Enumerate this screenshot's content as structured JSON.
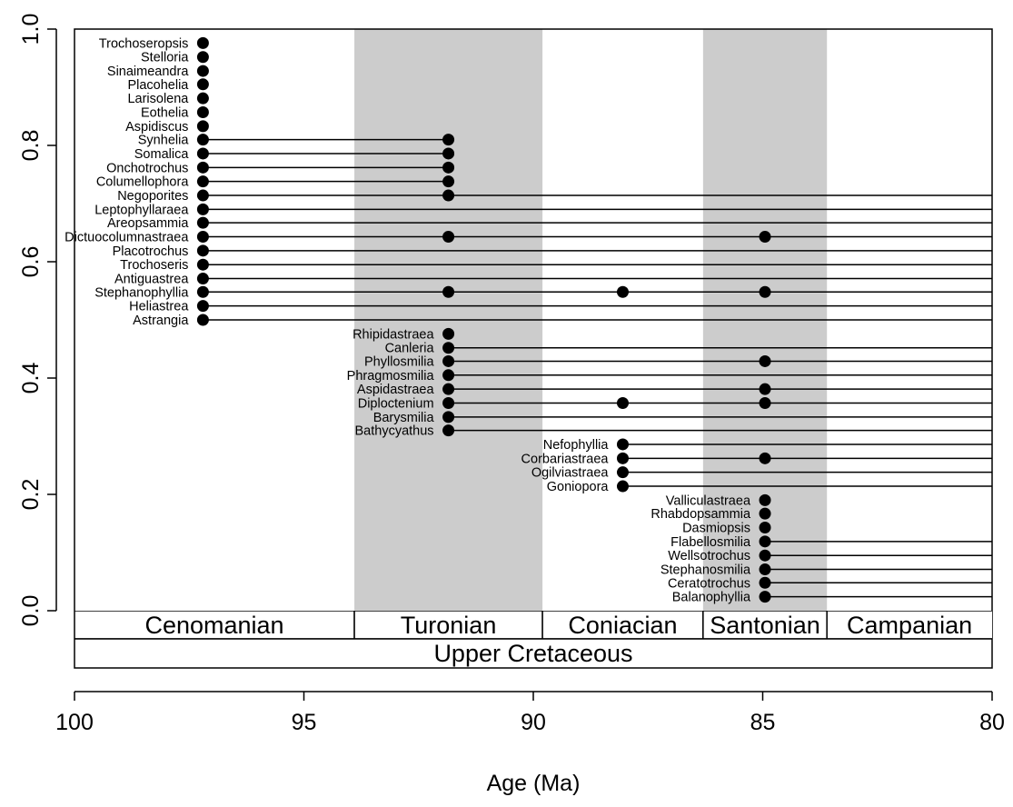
{
  "chart_data": {
    "type": "scatter",
    "xlabel": "Age (Ma)",
    "xlim": [
      100,
      80
    ],
    "ylim": [
      0,
      1
    ],
    "x_ticks": [
      100,
      95,
      90,
      85,
      80
    ],
    "x_tick_labels": [
      "100",
      "95",
      "90",
      "85",
      "80"
    ],
    "y_ticks": [
      0.0,
      0.2,
      0.4,
      0.6,
      0.8,
      1.0
    ],
    "y_tick_labels": [
      "0.0",
      "0.2",
      "0.4",
      "0.6",
      "0.8",
      "1.0"
    ],
    "stages": [
      {
        "name": "Cenomanian",
        "start": 100.5,
        "end": 93.9,
        "shaded": false
      },
      {
        "name": "Turonian",
        "start": 93.9,
        "end": 89.8,
        "shaded": true
      },
      {
        "name": "Coniacian",
        "start": 89.8,
        "end": 86.3,
        "shaded": false
      },
      {
        "name": "Santonian",
        "start": 86.3,
        "end": 83.6,
        "shaded": true
      },
      {
        "name": "Campanian",
        "start": 83.6,
        "end": 72.1,
        "shaded": false
      }
    ],
    "period": {
      "name": "Upper Cretaceous"
    },
    "shading_color": "#cccccc",
    "taxa": [
      {
        "name": "Trochoseropsis",
        "y": 0.976,
        "occurrences": [
          97.2
        ],
        "range_end": 97.2
      },
      {
        "name": "Stelloria",
        "y": 0.952,
        "occurrences": [
          97.2
        ],
        "range_end": 97.2
      },
      {
        "name": "Sinaimeandra",
        "y": 0.928,
        "occurrences": [
          97.2
        ],
        "range_end": 97.2
      },
      {
        "name": "Placohelia",
        "y": 0.905,
        "occurrences": [
          97.2
        ],
        "range_end": 97.2
      },
      {
        "name": "Larisolena",
        "y": 0.881,
        "occurrences": [
          97.2
        ],
        "range_end": 97.2
      },
      {
        "name": "Eothelia",
        "y": 0.857,
        "occurrences": [
          97.2
        ],
        "range_end": 97.2
      },
      {
        "name": "Aspidiscus",
        "y": 0.833,
        "occurrences": [
          97.2
        ],
        "range_end": 97.2
      },
      {
        "name": "Synhelia",
        "y": 0.81,
        "occurrences": [
          97.2,
          91.85
        ],
        "range_end": 91.85
      },
      {
        "name": "Somalica",
        "y": 0.786,
        "occurrences": [
          97.2,
          91.85
        ],
        "range_end": 91.85
      },
      {
        "name": "Onchotrochus",
        "y": 0.762,
        "occurrences": [
          97.2,
          91.85
        ],
        "range_end": 91.85
      },
      {
        "name": "Columellophora",
        "y": 0.738,
        "occurrences": [
          97.2,
          91.85
        ],
        "range_end": 91.85
      },
      {
        "name": "Negoporites",
        "y": 0.714,
        "occurrences": [
          97.2,
          91.85
        ],
        "range_end": 80
      },
      {
        "name": "Leptophyllaraea",
        "y": 0.69,
        "occurrences": [
          97.2
        ],
        "range_end": 80
      },
      {
        "name": "Areopsammia",
        "y": 0.667,
        "occurrences": [
          97.2
        ],
        "range_end": 80
      },
      {
        "name": "Dictuocolumnastraea",
        "y": 0.643,
        "occurrences": [
          97.2,
          91.85,
          84.95
        ],
        "range_end": 80
      },
      {
        "name": "Placotrochus",
        "y": 0.619,
        "occurrences": [
          97.2
        ],
        "range_end": 80
      },
      {
        "name": "Trochoseris",
        "y": 0.595,
        "occurrences": [
          97.2
        ],
        "range_end": 80
      },
      {
        "name": "Antiguastrea",
        "y": 0.571,
        "occurrences": [
          97.2
        ],
        "range_end": 80
      },
      {
        "name": "Stephanophyllia",
        "y": 0.548,
        "occurrences": [
          97.2,
          91.85,
          88.05,
          84.95
        ],
        "range_end": 80
      },
      {
        "name": "Heliastrea",
        "y": 0.524,
        "occurrences": [
          97.2
        ],
        "range_end": 80
      },
      {
        "name": "Astrangia",
        "y": 0.5,
        "occurrences": [
          97.2
        ],
        "range_end": 80
      },
      {
        "name": "Rhipidastraea",
        "y": 0.476,
        "occurrences": [
          91.85
        ],
        "range_end": 91.85
      },
      {
        "name": "Canleria",
        "y": 0.452,
        "occurrences": [
          91.85
        ],
        "range_end": 80
      },
      {
        "name": "Phyllosmilia",
        "y": 0.429,
        "occurrences": [
          91.85,
          84.95
        ],
        "range_end": 80
      },
      {
        "name": "Phragmosmilia",
        "y": 0.405,
        "occurrences": [
          91.85
        ],
        "range_end": 80
      },
      {
        "name": "Aspidastraea",
        "y": 0.381,
        "occurrences": [
          91.85,
          84.95
        ],
        "range_end": 80
      },
      {
        "name": "Diploctenium",
        "y": 0.357,
        "occurrences": [
          91.85,
          88.05,
          84.95
        ],
        "range_end": 80
      },
      {
        "name": "Barysmilia",
        "y": 0.333,
        "occurrences": [
          91.85
        ],
        "range_end": 80
      },
      {
        "name": "Bathycyathus",
        "y": 0.31,
        "occurrences": [
          91.85
        ],
        "range_end": 80
      },
      {
        "name": "Nefophyllia",
        "y": 0.286,
        "occurrences": [
          88.05
        ],
        "range_end": 80
      },
      {
        "name": "Corbariastraea",
        "y": 0.262,
        "occurrences": [
          88.05,
          84.95
        ],
        "range_end": 80
      },
      {
        "name": "Ogilviastraea",
        "y": 0.238,
        "occurrences": [
          88.05
        ],
        "range_end": 80
      },
      {
        "name": "Goniopora",
        "y": 0.214,
        "occurrences": [
          88.05
        ],
        "range_end": 80
      },
      {
        "name": "Valliculastraea",
        "y": 0.19,
        "occurrences": [
          84.95
        ],
        "range_end": 84.95
      },
      {
        "name": "Rhabdopsammia",
        "y": 0.167,
        "occurrences": [
          84.95
        ],
        "range_end": 84.95
      },
      {
        "name": "Dasmiopsis",
        "y": 0.143,
        "occurrences": [
          84.95
        ],
        "range_end": 84.95
      },
      {
        "name": "Flabellosmilia",
        "y": 0.119,
        "occurrences": [
          84.95
        ],
        "range_end": 80
      },
      {
        "name": "Wellsotrochus",
        "y": 0.095,
        "occurrences": [
          84.95
        ],
        "range_end": 80
      },
      {
        "name": "Stephanosmilia",
        "y": 0.071,
        "occurrences": [
          84.95
        ],
        "range_end": 80
      },
      {
        "name": "Ceratotrochus",
        "y": 0.048,
        "occurrences": [
          84.95
        ],
        "range_end": 80
      },
      {
        "name": "Balanophyllia",
        "y": 0.024,
        "occurrences": [
          84.95
        ],
        "range_end": 80
      }
    ]
  }
}
